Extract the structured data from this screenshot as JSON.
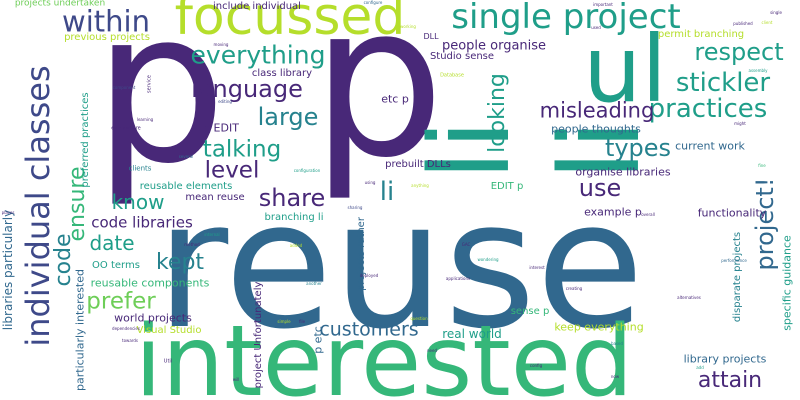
{
  "palette": {
    "purple": "#482878",
    "navy": "#3e4989",
    "blue": "#31688e",
    "teal": "#26828e",
    "aqua": "#1f9e89",
    "green": "#35b779",
    "lime": "#6ece58",
    "yellow": "#b5de2b",
    "gold": "#d8e219"
  },
  "words": [
    {
      "text": "reuse",
      "color": "blue"
    },
    {
      "text": "p",
      "color": "purple"
    },
    {
      "text": "p",
      "color": "purple"
    },
    {
      "text": "li",
      "color": "aqua"
    },
    {
      "text": "li",
      "color": "aqua"
    },
    {
      "text": "interested",
      "color": "green"
    },
    {
      "text": "ul",
      "color": "aqua"
    },
    {
      "text": "focussed",
      "color": "yellow"
    },
    {
      "text": "single project",
      "color": "aqua"
    },
    {
      "text": "individual classes",
      "color": "navy"
    },
    {
      "text": "within",
      "color": "navy"
    },
    {
      "text": "everything",
      "color": "aqua"
    },
    {
      "text": "language",
      "color": "purple"
    },
    {
      "text": "respect",
      "color": "aqua"
    },
    {
      "text": "stickler",
      "color": "aqua"
    },
    {
      "text": "practices",
      "color": "aqua"
    },
    {
      "text": "large",
      "color": "teal"
    },
    {
      "text": "looking",
      "color": "aqua"
    },
    {
      "text": "misleading",
      "color": "purple"
    },
    {
      "text": "talking",
      "color": "aqua"
    },
    {
      "text": "types",
      "color": "teal"
    },
    {
      "text": "level",
      "color": "purple"
    },
    {
      "text": "use",
      "color": "purple"
    },
    {
      "text": "know",
      "color": "aqua"
    },
    {
      "text": "share",
      "color": "purple"
    },
    {
      "text": "li",
      "color": "teal"
    },
    {
      "text": "ensure",
      "color": "green"
    },
    {
      "text": "project!",
      "color": "blue"
    },
    {
      "text": "code libraries",
      "color": "purple"
    },
    {
      "text": "date",
      "color": "aqua"
    },
    {
      "text": "kept",
      "color": "teal"
    },
    {
      "text": "code",
      "color": "teal"
    },
    {
      "text": "prefer",
      "color": "lime"
    },
    {
      "text": "customers",
      "color": "blue"
    },
    {
      "text": "attain",
      "color": "purple"
    },
    {
      "text": "people organise",
      "color": "purple"
    },
    {
      "text": "class library",
      "color": "purple"
    },
    {
      "text": "include individual",
      "color": "purple"
    },
    {
      "text": "previous projects",
      "color": "yellow"
    },
    {
      "text": "projects undertaken",
      "color": "lime"
    },
    {
      "text": "etc p",
      "color": "purple"
    },
    {
      "text": "p EDIT",
      "color": "purple"
    },
    {
      "text": "libraries particularly",
      "color": "blue"
    },
    {
      "text": "preferred practices",
      "color": "aqua"
    },
    {
      "text": "reusable elements",
      "color": "aqua"
    },
    {
      "text": "mean reuse",
      "color": "purple"
    },
    {
      "text": "branching li",
      "color": "aqua"
    },
    {
      "text": "people thoughts",
      "color": "blue"
    },
    {
      "text": "current work",
      "color": "blue"
    },
    {
      "text": "organise libraries",
      "color": "purple"
    },
    {
      "text": "prebuilt DLLs",
      "color": "purple"
    },
    {
      "text": "EDIT p",
      "color": "green"
    },
    {
      "text": "example p",
      "color": "purple"
    },
    {
      "text": "functionality",
      "color": "purple"
    },
    {
      "text": "OO terms",
      "color": "aqua"
    },
    {
      "text": "reusable components",
      "color": "green"
    },
    {
      "text": "world projects",
      "color": "purple"
    },
    {
      "text": "Visual Studio",
      "color": "yellow"
    },
    {
      "text": "particularly interested",
      "color": "blue"
    },
    {
      "text": "project Unfortunately",
      "color": "purple"
    },
    {
      "text": "p etc",
      "color": "blue"
    },
    {
      "text": "real world",
      "color": "aqua"
    },
    {
      "text": "keep everything",
      "color": "yellow"
    },
    {
      "text": "library projects",
      "color": "blue"
    },
    {
      "text": "projects rather",
      "color": "blue"
    },
    {
      "text": "disparate projects",
      "color": "teal"
    },
    {
      "text": "specific guidance",
      "color": "aqua"
    },
    {
      "text": "sense p",
      "color": "green"
    },
    {
      "text": "permit branching",
      "color": "yellow"
    },
    {
      "text": "Studio sense",
      "color": "purple"
    },
    {
      "text": "DLL",
      "color": "purple"
    },
    {
      "text": "configure",
      "color": "blue"
    },
    {
      "text": "important",
      "color": "purple"
    },
    {
      "text": "published",
      "color": "purple"
    },
    {
      "text": "client",
      "color": "yellow"
    },
    {
      "text": "Database",
      "color": "yellow"
    },
    {
      "text": "assembly",
      "color": "aqua"
    },
    {
      "text": "service",
      "color": "purple"
    },
    {
      "text": "component",
      "color": "navy"
    },
    {
      "text": "learning",
      "color": "purple"
    },
    {
      "text": "everywhere",
      "color": "purple"
    },
    {
      "text": "clients",
      "color": "teal"
    },
    {
      "text": "several",
      "color": "blue"
    },
    {
      "text": "configuration",
      "color": "aqua"
    },
    {
      "text": "moving",
      "color": "purple"
    },
    {
      "text": "using",
      "color": "purple"
    },
    {
      "text": "anything",
      "color": "yellow"
    },
    {
      "text": "sharing",
      "color": "navy"
    },
    {
      "text": "internal",
      "color": "aqua"
    },
    {
      "text": "Util",
      "color": "purple"
    },
    {
      "text": "dependencies",
      "color": "purple"
    },
    {
      "text": "towards",
      "color": "purple"
    },
    {
      "text": "method",
      "color": "purple"
    },
    {
      "text": "simple",
      "color": "yellow"
    },
    {
      "text": "file",
      "color": "purple"
    },
    {
      "text": "question",
      "color": "yellow"
    },
    {
      "text": "interest",
      "color": "purple"
    },
    {
      "text": "applications",
      "color": "purple"
    },
    {
      "text": "creating",
      "color": "purple"
    },
    {
      "text": "alternatives",
      "color": "purple"
    },
    {
      "text": "performance",
      "color": "blue"
    },
    {
      "text": "based",
      "color": "teal"
    },
    {
      "text": "now",
      "color": "purple"
    },
    {
      "text": "config",
      "color": "purple"
    },
    {
      "text": "will",
      "color": "purple"
    },
    {
      "text": "wondering",
      "color": "aqua"
    },
    {
      "text": "deployed",
      "color": "purple"
    },
    {
      "text": "might",
      "color": "purple"
    },
    {
      "text": "GAC",
      "color": "purple"
    },
    {
      "text": "editing",
      "color": "navy"
    },
    {
      "text": "fine",
      "color": "green"
    },
    {
      "text": "working",
      "color": "yellow"
    },
    {
      "text": "places",
      "color": "purple"
    },
    {
      "text": "overall",
      "color": "purple"
    },
    {
      "text": "added",
      "color": "yellow"
    },
    {
      "text": "another",
      "color": "teal"
    },
    {
      "text": "used",
      "color": "purple"
    },
    {
      "text": "single",
      "color": "purple"
    },
    {
      "text": "add",
      "color": "aqua"
    },
    {
      "text": "need",
      "color": "purple"
    }
  ]
}
